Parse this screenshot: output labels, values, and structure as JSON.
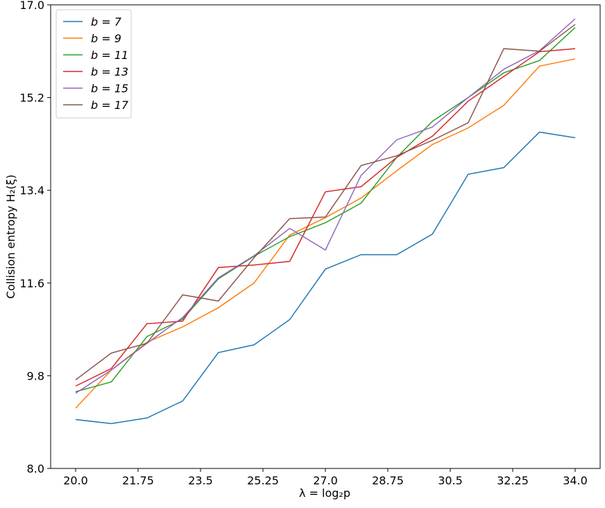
{
  "chart_data": {
    "type": "line",
    "xlabel": "λ = log₂p",
    "ylabel": "Collision entropy H₂(ξ)",
    "x": [
      20,
      21,
      22,
      23,
      24,
      25,
      26,
      27,
      28,
      29,
      30,
      31,
      32,
      33,
      34
    ],
    "xlim": [
      19.3,
      34.7
    ],
    "xticks": [
      {
        "value": 20,
        "label": "20.0"
      },
      21.75,
      23.5,
      25.25,
      {
        "value": 27,
        "label": "27.0"
      },
      28.75,
      30.5,
      32.25,
      {
        "value": 34,
        "label": "34.0"
      }
    ],
    "ylim": [
      8,
      17
    ],
    "yticks": [
      {
        "value": 8,
        "label": "8.0"
      },
      9.8,
      11.6,
      13.4,
      15.2,
      {
        "value": 17,
        "label": "17.0"
      }
    ],
    "legend": "upper left",
    "series": [
      {
        "name": "b = 7",
        "color": "#1f77b4",
        "values": [
          8.95,
          8.87,
          8.98,
          9.31,
          10.25,
          10.4,
          10.89,
          11.87,
          12.15,
          12.15,
          12.55,
          13.71,
          13.84,
          14.53,
          14.42
        ]
      },
      {
        "name": "b = 9",
        "color": "#ff7f0e",
        "values": [
          9.17,
          9.91,
          10.45,
          10.75,
          11.12,
          11.6,
          12.53,
          12.87,
          13.25,
          13.78,
          14.29,
          14.61,
          15.05,
          15.81,
          15.95
        ]
      },
      {
        "name": "b = 11",
        "color": "#2ca02c",
        "values": [
          9.49,
          9.68,
          10.56,
          10.9,
          11.68,
          12.12,
          12.5,
          12.77,
          13.15,
          14.04,
          14.74,
          15.2,
          15.68,
          15.92,
          16.56
        ]
      },
      {
        "name": "b = 13",
        "color": "#d62728",
        "values": [
          9.6,
          9.94,
          10.81,
          10.86,
          11.9,
          11.95,
          12.02,
          13.37,
          13.47,
          14.04,
          14.45,
          15.13,
          15.61,
          16.09,
          16.15
        ]
      },
      {
        "name": "b = 15",
        "color": "#9467bd",
        "values": [
          9.46,
          9.91,
          10.43,
          10.93,
          11.7,
          12.13,
          12.66,
          12.24,
          13.69,
          14.38,
          14.63,
          15.2,
          15.75,
          16.11,
          16.73
        ]
      },
      {
        "name": "b = 17",
        "color": "#8c564b",
        "values": [
          9.72,
          10.24,
          10.43,
          11.37,
          11.25,
          12.09,
          12.85,
          12.88,
          13.88,
          14.07,
          14.37,
          14.71,
          16.15,
          16.1,
          16.62
        ]
      }
    ]
  }
}
